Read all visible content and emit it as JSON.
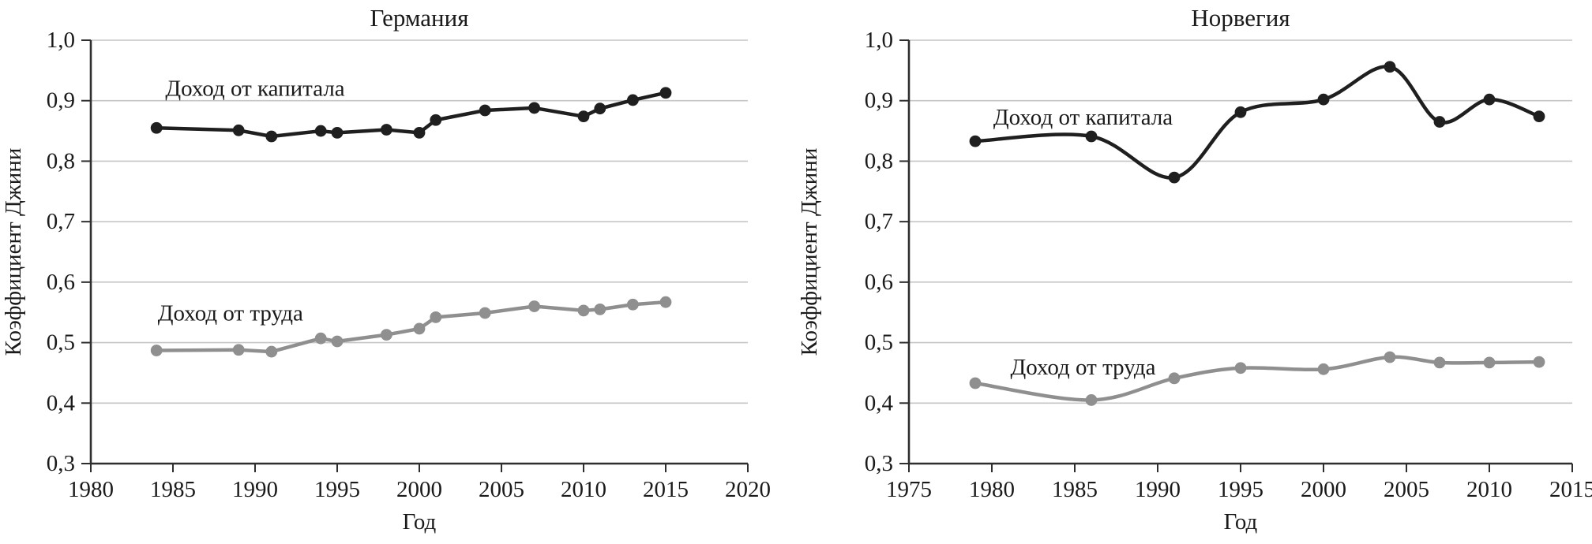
{
  "page": {
    "background_color": "#ffffff",
    "text_color": "#1a1a1a",
    "gridline_color": "#c6c6c6",
    "axis_color": "#2e2e2e"
  },
  "chart_data": [
    {
      "type": "line",
      "title": "Германия",
      "xlabel": "Год",
      "ylabel": "Коэффициент Джини",
      "xlim": [
        1980,
        2020
      ],
      "ylim": [
        0.3,
        1.0
      ],
      "grid": "horizontal",
      "legend": "inline-labels",
      "x_ticks": [
        1980,
        1985,
        1990,
        1995,
        2000,
        2005,
        2010,
        2015,
        2020
      ],
      "y_ticks": [
        {
          "label": "1,0",
          "value": 1.0
        },
        {
          "label": "0,9",
          "value": 0.9
        },
        {
          "label": "0,8",
          "value": 0.8
        },
        {
          "label": "0,7",
          "value": 0.7
        },
        {
          "label": "0,6",
          "value": 0.6
        },
        {
          "label": "0,5",
          "value": 0.5
        },
        {
          "label": "0,4",
          "value": 0.4
        },
        {
          "label": "0,3",
          "value": 0.3
        }
      ],
      "series": [
        {
          "name": "Доход от капитала",
          "color": "#1f1f1f",
          "smooth": false,
          "x": [
            1984,
            1989,
            1991,
            1994,
            1995,
            1998,
            2000,
            2001,
            2004,
            2007,
            2010,
            2011,
            2013,
            2015
          ],
          "values": [
            0.855,
            0.851,
            0.841,
            0.85,
            0.847,
            0.852,
            0.847,
            0.868,
            0.884,
            0.888,
            0.874,
            0.887,
            0.901,
            0.913
          ],
          "label_at": {
            "x": 1990,
            "y": 0.92
          }
        },
        {
          "name": "Доход от труда",
          "color": "#8f8f8f",
          "smooth": false,
          "x": [
            1984,
            1989,
            1991,
            1994,
            1995,
            1998,
            2000,
            2001,
            2004,
            2007,
            2010,
            2011,
            2013,
            2015
          ],
          "values": [
            0.487,
            0.488,
            0.485,
            0.507,
            0.502,
            0.513,
            0.523,
            0.542,
            0.549,
            0.56,
            0.553,
            0.555,
            0.563,
            0.567
          ],
          "label_at": {
            "x": 1988.5,
            "y": 0.548
          }
        }
      ]
    },
    {
      "type": "line",
      "title": "Норвегия",
      "xlabel": "Год",
      "ylabel": "Коэффициент Джини",
      "xlim": [
        1975,
        2015
      ],
      "ylim": [
        0.3,
        1.0
      ],
      "grid": "horizontal",
      "legend": "inline-labels",
      "x_ticks": [
        1975,
        1980,
        1985,
        1990,
        1995,
        2000,
        2005,
        2010,
        2015
      ],
      "y_ticks": [
        {
          "label": "1,0",
          "value": 1.0
        },
        {
          "label": "0,9",
          "value": 0.9
        },
        {
          "label": "0,8",
          "value": 0.8
        },
        {
          "label": "0,7",
          "value": 0.7
        },
        {
          "label": "0,6",
          "value": 0.6
        },
        {
          "label": "0,5",
          "value": 0.5
        },
        {
          "label": "0,4",
          "value": 0.4
        },
        {
          "label": "0,3",
          "value": 0.3
        }
      ],
      "series": [
        {
          "name": "Доход от капитала",
          "color": "#1f1f1f",
          "smooth": true,
          "x": [
            1979,
            1986,
            1991,
            1995,
            2000,
            2004,
            2007,
            2010,
            2013
          ],
          "values": [
            0.833,
            0.841,
            0.773,
            0.881,
            0.902,
            0.956,
            0.865,
            0.902,
            0.874
          ],
          "label_at": {
            "x": 1985.5,
            "y": 0.872
          }
        },
        {
          "name": "Доход от труда",
          "color": "#8f8f8f",
          "smooth": true,
          "x": [
            1979,
            1986,
            1991,
            1995,
            2000,
            2004,
            2007,
            2010,
            2013
          ],
          "values": [
            0.433,
            0.405,
            0.441,
            0.458,
            0.456,
            0.476,
            0.467,
            0.467,
            0.468
          ],
          "label_at": {
            "x": 1985.5,
            "y": 0.459
          }
        }
      ]
    }
  ]
}
